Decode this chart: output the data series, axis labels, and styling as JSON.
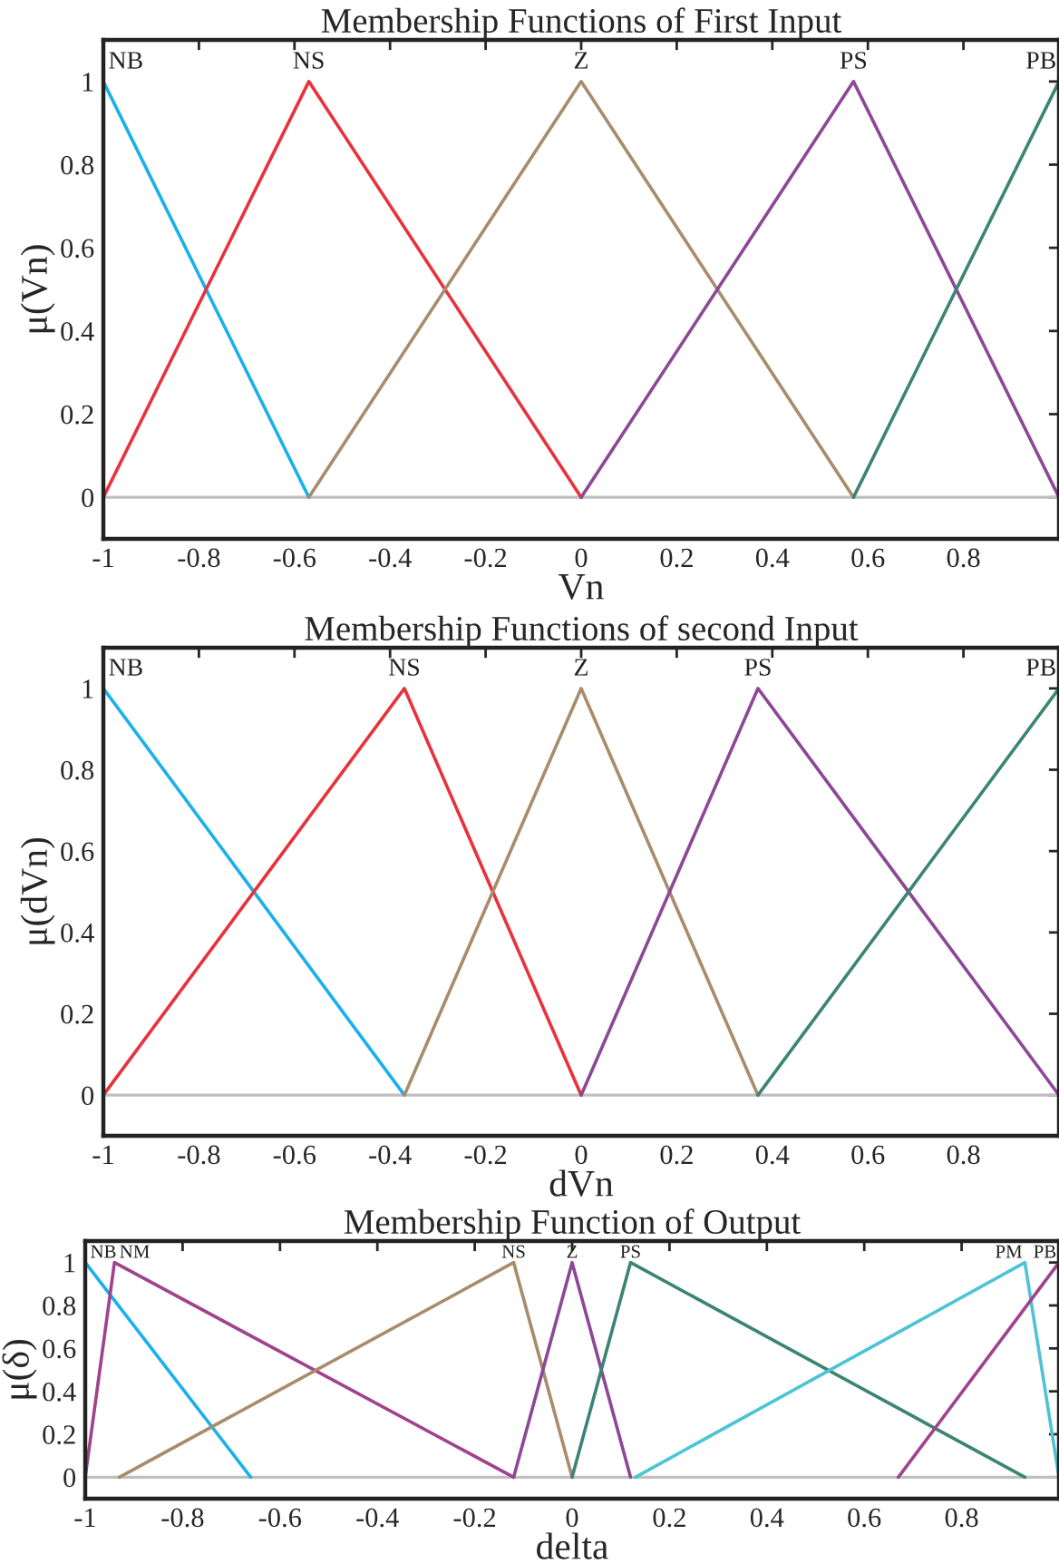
{
  "chart_data": [
    {
      "type": "line",
      "title": "Membership Functions of First Input",
      "xlabel": "Vn",
      "ylabel": "μ(Vn)",
      "xlim": [
        -1,
        1
      ],
      "ylim": [
        -0.1,
        1.1
      ],
      "xticks": [
        -1,
        -0.8,
        -0.6,
        -0.4,
        -0.2,
        0,
        0.2,
        0.4,
        0.6,
        0.8
      ],
      "yticks": [
        0,
        0.2,
        0.4,
        0.6,
        0.8,
        1
      ],
      "grid": false,
      "series": [
        {
          "name": "NB",
          "color": "#1ab0ec",
          "x": [
            -1,
            -0.57
          ],
          "values": [
            1,
            0
          ]
        },
        {
          "name": "NS",
          "color": "#e8323c",
          "x": [
            -1,
            -0.57,
            0
          ],
          "values": [
            0,
            1,
            0
          ]
        },
        {
          "name": "Z",
          "color": "#a88c6c",
          "x": [
            -0.57,
            0,
            0.57
          ],
          "values": [
            0,
            1,
            0
          ]
        },
        {
          "name": "PS",
          "color": "#8c4896",
          "x": [
            0,
            0.57,
            1
          ],
          "values": [
            0,
            1,
            0
          ]
        },
        {
          "name": "PB",
          "color": "#3c8474",
          "x": [
            0.57,
            1
          ],
          "values": [
            0,
            1
          ]
        }
      ],
      "ref_lines": [
        {
          "axis": "y",
          "value": 0,
          "color": "#c0c0c0"
        }
      ]
    },
    {
      "type": "line",
      "title": "Membership Functions of second Input",
      "xlabel": "dVn",
      "ylabel": "μ(dVn)",
      "xlim": [
        -1,
        1
      ],
      "ylim": [
        -0.1,
        1.1
      ],
      "xticks": [
        -1,
        -0.8,
        -0.6,
        -0.4,
        -0.2,
        0,
        0.2,
        0.4,
        0.6,
        0.8
      ],
      "yticks": [
        0,
        0.2,
        0.4,
        0.6,
        0.8,
        1
      ],
      "grid": false,
      "series": [
        {
          "name": "NB",
          "color": "#1ab0ec",
          "x": [
            -1,
            -0.37
          ],
          "values": [
            1,
            0
          ]
        },
        {
          "name": "NS",
          "color": "#e8323c",
          "x": [
            -1,
            -0.37,
            0
          ],
          "values": [
            0,
            1,
            0
          ]
        },
        {
          "name": "Z",
          "color": "#a88c6c",
          "x": [
            -0.37,
            0,
            0.37
          ],
          "values": [
            0,
            1,
            0
          ]
        },
        {
          "name": "PS",
          "color": "#8c4896",
          "x": [
            0,
            0.37,
            1
          ],
          "values": [
            0,
            1,
            0
          ]
        },
        {
          "name": "PB",
          "color": "#3c8474",
          "x": [
            0.37,
            1
          ],
          "values": [
            0,
            1
          ]
        }
      ],
      "ref_lines": [
        {
          "axis": "y",
          "value": 0,
          "color": "#c0c0c0"
        }
      ]
    },
    {
      "type": "line",
      "title": "Membership Function of Output",
      "xlabel": "delta",
      "ylabel": "μ(δ)",
      "xlim": [
        -1,
        1
      ],
      "ylim": [
        -0.1,
        1.1
      ],
      "xticks": [
        -1,
        -0.8,
        -0.6,
        -0.4,
        -0.2,
        0,
        0.2,
        0.4,
        0.6,
        0.8
      ],
      "yticks": [
        0,
        0.2,
        0.4,
        0.6,
        0.8,
        1
      ],
      "grid": false,
      "series": [
        {
          "name": "NB",
          "color": "#1ab0ec",
          "x": [
            -1,
            -0.66
          ],
          "values": [
            1,
            0
          ]
        },
        {
          "name": "NM",
          "color": "#a0428e",
          "x": [
            -1,
            -0.94,
            -0.12
          ],
          "values": [
            0,
            1,
            0
          ]
        },
        {
          "name": "NS",
          "color": "#a88c6c",
          "x": [
            -0.93,
            -0.12,
            0
          ],
          "values": [
            0,
            1,
            0
          ]
        },
        {
          "name": "Z",
          "color": "#8c4896",
          "x": [
            -0.12,
            0,
            0.12
          ],
          "values": [
            0,
            1,
            0
          ]
        },
        {
          "name": "PS",
          "color": "#3c8474",
          "x": [
            0,
            0.12,
            0.93
          ],
          "values": [
            0,
            1,
            0
          ]
        },
        {
          "name": "PM",
          "color": "#4cc4d4",
          "x": [
            0.13,
            0.93,
            1
          ],
          "values": [
            0,
            1,
            0
          ]
        },
        {
          "name": "PB",
          "color": "#a0428e",
          "x": [
            0.67,
            1
          ],
          "values": [
            0,
            1
          ]
        }
      ],
      "ref_lines": [
        {
          "axis": "y",
          "value": 0,
          "color": "#c0c0c0"
        }
      ]
    }
  ]
}
